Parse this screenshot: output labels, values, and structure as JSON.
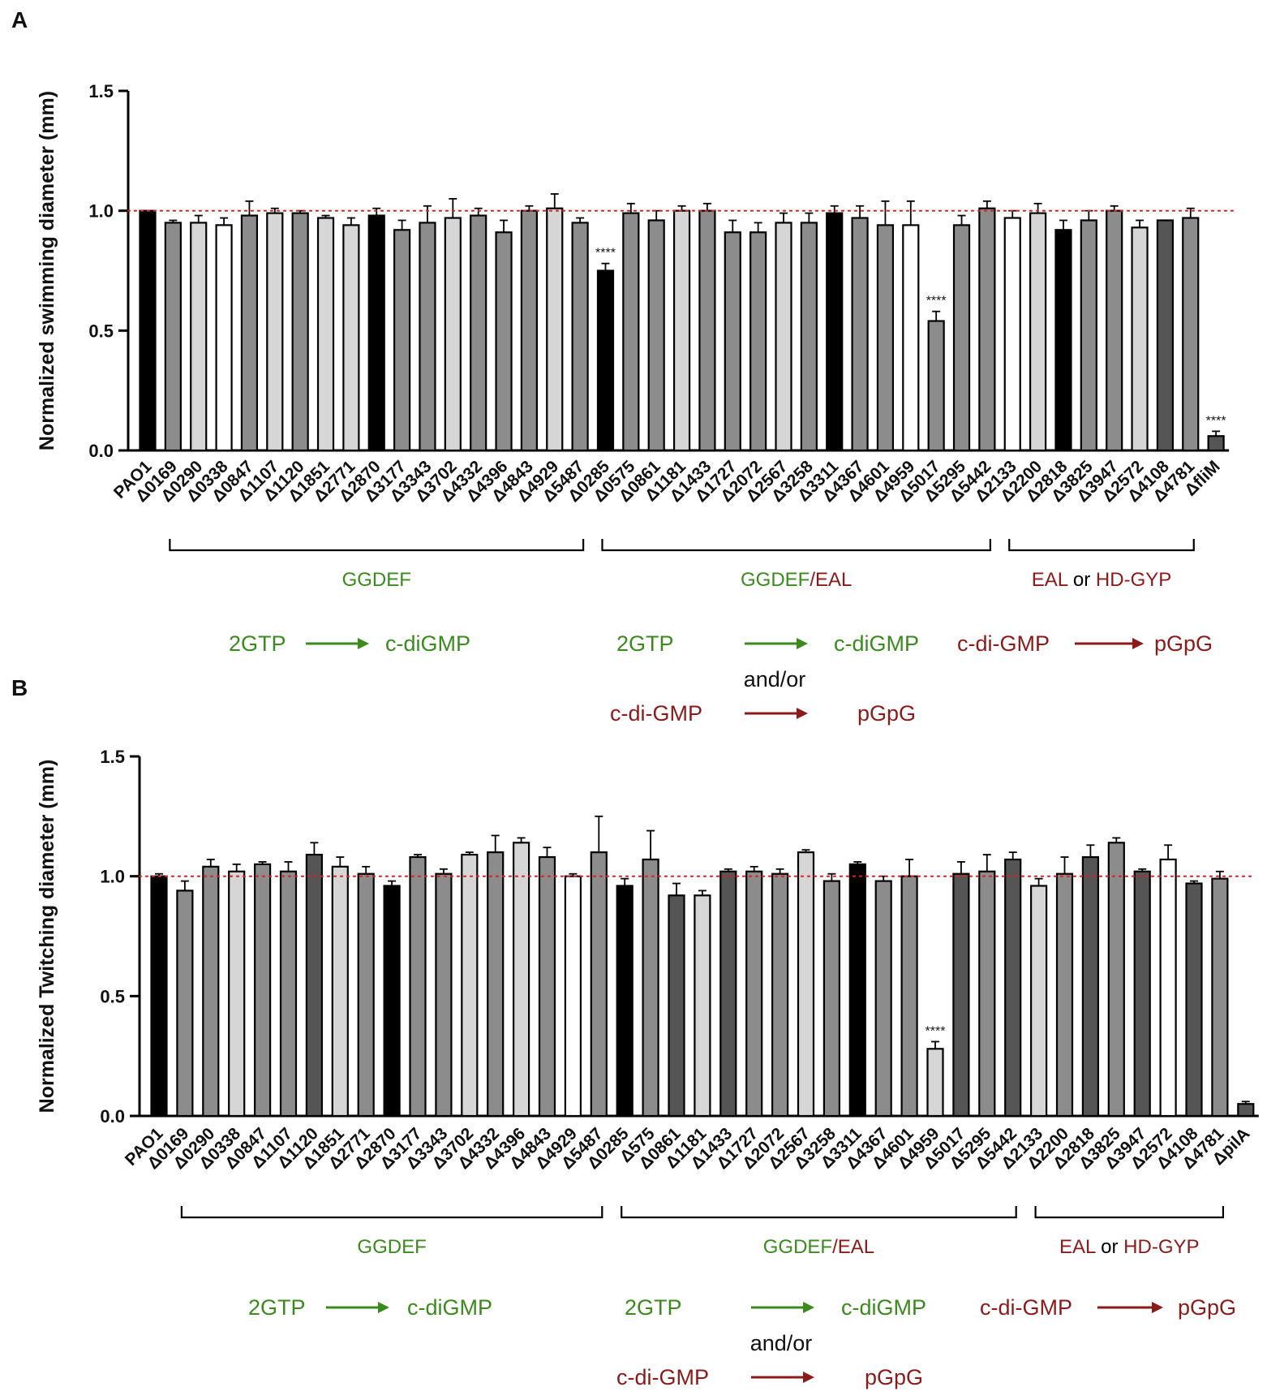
{
  "colors": {
    "green": "#3a8a1e",
    "darkred": "#8b1a1a",
    "refline": "#e02020",
    "black": "#000000",
    "darkgray": "#555555",
    "midgray": "#8c8c8c",
    "lightgray": "#d6d6d6",
    "white": "#ffffff"
  },
  "chart_data": [
    {
      "type": "bar",
      "panel_label": "A",
      "ylabel": "Normalized swimming diameter (mm)",
      "ylim": [
        0,
        1.5
      ],
      "yticks": [
        "0.0",
        "0.5",
        "1.0",
        "1.5"
      ],
      "reference_line": 1.0,
      "categories": [
        "PAO1",
        "Δ0169",
        "Δ0290",
        "Δ0338",
        "Δ0847",
        "Δ1107",
        "Δ1120",
        "Δ1851",
        "Δ2771",
        "Δ2870",
        "Δ3177",
        "Δ3343",
        "Δ3702",
        "Δ4332",
        "Δ4396",
        "Δ4843",
        "Δ4929",
        "Δ5487",
        "Δ0285",
        "Δ0575",
        "Δ0861",
        "Δ1181",
        "Δ1433",
        "Δ1727",
        "Δ2072",
        "Δ2567",
        "Δ3258",
        "Δ3311",
        "Δ4367",
        "Δ4601",
        "Δ4959",
        "Δ5017",
        "Δ5295",
        "Δ5442",
        "Δ2133",
        "Δ2200",
        "Δ2818",
        "Δ3825",
        "Δ3947",
        "Δ2572",
        "Δ4108",
        "Δ4781",
        "ΔfliM"
      ],
      "values": [
        1.0,
        0.95,
        0.95,
        0.94,
        0.98,
        0.99,
        0.99,
        0.97,
        0.94,
        0.98,
        0.92,
        0.95,
        0.97,
        0.98,
        0.91,
        1.0,
        1.01,
        0.95,
        0.75,
        0.99,
        0.96,
        1.0,
        1.0,
        0.91,
        0.91,
        0.95,
        0.95,
        0.99,
        0.97,
        0.94,
        0.94,
        0.54,
        0.94,
        1.01,
        0.97,
        0.99,
        0.92,
        0.96,
        1.0,
        0.93,
        0.96,
        0.97,
        0.06
      ],
      "errors": [
        0,
        0.01,
        0.03,
        0.03,
        0.06,
        0.02,
        0.01,
        0.01,
        0.03,
        0.03,
        0.04,
        0.07,
        0.08,
        0.03,
        0.05,
        0.02,
        0.06,
        0.02,
        0.03,
        0.04,
        0.04,
        0.02,
        0.03,
        0.05,
        0.04,
        0.04,
        0.04,
        0.03,
        0.05,
        0.1,
        0.1,
        0.04,
        0.04,
        0.03,
        0.03,
        0.04,
        0.04,
        0.04,
        0.02,
        0.03,
        0.0,
        0.04,
        0.02
      ],
      "shades": [
        "black",
        "midgray",
        "lightgray",
        "white",
        "midgray",
        "lightgray",
        "midgray",
        "lightgray",
        "lightgray",
        "black",
        "midgray",
        "midgray",
        "lightgray",
        "midgray",
        "midgray",
        "midgray",
        "lightgray",
        "midgray",
        "black",
        "midgray",
        "midgray",
        "lightgray",
        "midgray",
        "midgray",
        "midgray",
        "lightgray",
        "midgray",
        "black",
        "midgray",
        "midgray",
        "white",
        "midgray",
        "midgray",
        "midgray",
        "white",
        "lightgray",
        "black",
        "midgray",
        "midgray",
        "lightgray",
        "darkgray",
        "midgray",
        "darkgray"
      ],
      "significance": [
        {
          "index": 18,
          "label": "****"
        },
        {
          "index": 31,
          "label": "****"
        },
        {
          "index": 42,
          "label": "****"
        }
      ],
      "groups": [
        {
          "from": 1,
          "to": 17,
          "parts": [
            {
              "text": "GGDEF",
              "color": "green"
            }
          ]
        },
        {
          "from": 18,
          "to": 33,
          "parts": [
            {
              "text": "GGDEF",
              "color": "green"
            },
            {
              "text": "/",
              "color": "darkred"
            },
            {
              "text": "EAL",
              "color": "darkred"
            }
          ]
        },
        {
          "from": 34,
          "to": 41,
          "parts": [
            {
              "text": "EAL",
              "color": "darkred"
            },
            {
              "text": " or ",
              "color": "black"
            },
            {
              "text": "HD-GYP",
              "color": "darkred"
            }
          ]
        }
      ]
    },
    {
      "type": "bar",
      "panel_label": "B",
      "ylabel": "Normalized Twitching diameter (mm)",
      "ylim": [
        0,
        1.5
      ],
      "yticks": [
        "0.0",
        "0.5",
        "1.0",
        "1.5"
      ],
      "reference_line": 1.0,
      "categories": [
        "PAO1",
        "Δ0169",
        "Δ0290",
        "Δ0338",
        "Δ0847",
        "Δ1107",
        "Δ1120",
        "Δ1851",
        "Δ2771",
        "Δ2870",
        "Δ3177",
        "Δ3343",
        "Δ3702",
        "Δ4332",
        "Δ4396",
        "Δ4843",
        "Δ4929",
        "Δ5487",
        "Δ0285",
        "Δ575",
        "Δ0861",
        "Δ1181",
        "Δ1433",
        "Δ1727",
        "Δ2072",
        "Δ2567",
        "Δ3258",
        "Δ3311",
        "Δ4367",
        "Δ4601",
        "Δ4959",
        "Δ5017",
        "Δ5295",
        "Δ5442",
        "Δ2133",
        "Δ2200",
        "Δ2818",
        "Δ3825",
        "Δ3947",
        "Δ2572",
        "Δ4108",
        "Δ4781",
        "ΔpilA"
      ],
      "values": [
        1.0,
        0.94,
        1.04,
        1.02,
        1.05,
        1.02,
        1.09,
        1.04,
        1.01,
        0.96,
        1.08,
        1.01,
        1.09,
        1.1,
        1.14,
        1.08,
        1.0,
        1.1,
        0.96,
        1.07,
        0.92,
        0.92,
        1.02,
        1.02,
        1.01,
        1.1,
        0.98,
        1.05,
        0.98,
        1.0,
        0.28,
        1.01,
        1.02,
        1.07,
        0.96,
        1.01,
        1.08,
        1.14,
        1.02,
        1.07,
        0.97,
        0.99,
        0.05
      ],
      "errors": [
        0.01,
        0.04,
        0.03,
        0.03,
        0.01,
        0.04,
        0.05,
        0.04,
        0.03,
        0.02,
        0.01,
        0.02,
        0.01,
        0.07,
        0.02,
        0.04,
        0.01,
        0.15,
        0.03,
        0.12,
        0.05,
        0.02,
        0.01,
        0.02,
        0.02,
        0.01,
        0.03,
        0.01,
        0.02,
        0.07,
        0.03,
        0.05,
        0.07,
        0.03,
        0.03,
        0.07,
        0.05,
        0.02,
        0.01,
        0.06,
        0.01,
        0.03,
        0.01
      ],
      "shades": [
        "black",
        "midgray",
        "midgray",
        "lightgray",
        "midgray",
        "midgray",
        "darkgray",
        "lightgray",
        "midgray",
        "black",
        "midgray",
        "midgray",
        "lightgray",
        "midgray",
        "lightgray",
        "midgray",
        "white",
        "midgray",
        "black",
        "midgray",
        "darkgray",
        "lightgray",
        "darkgray",
        "midgray",
        "midgray",
        "lightgray",
        "midgray",
        "black",
        "midgray",
        "midgray",
        "lightgray",
        "darkgray",
        "midgray",
        "darkgray",
        "lightgray",
        "midgray",
        "darkgray",
        "midgray",
        "darkgray",
        "white",
        "darkgray",
        "midgray",
        "darkgray"
      ],
      "significance": [
        {
          "index": 30,
          "label": "****"
        }
      ],
      "groups": [
        {
          "from": 1,
          "to": 17,
          "parts": [
            {
              "text": "GGDEF",
              "color": "green"
            }
          ]
        },
        {
          "from": 18,
          "to": 33,
          "parts": [
            {
              "text": "GGDEF",
              "color": "green"
            },
            {
              "text": "/",
              "color": "darkred"
            },
            {
              "text": "EAL",
              "color": "darkred"
            }
          ]
        },
        {
          "from": 34,
          "to": 41,
          "parts": [
            {
              "text": "EAL",
              "color": "darkred"
            },
            {
              "text": " or ",
              "color": "black"
            },
            {
              "text": "HD-GYP",
              "color": "darkred"
            }
          ]
        }
      ]
    }
  ],
  "reactions": {
    "ggdef": {
      "from": "2GTP",
      "to": "c-diGMP"
    },
    "ggdef_eal": {
      "first_from": "2GTP",
      "first_to": "c-diGMP",
      "connector": "and/or",
      "second_from": "c-di-GMP",
      "second_to": "pGpG"
    },
    "eal": {
      "from": "c-di-GMP",
      "to": "pGpG"
    }
  }
}
